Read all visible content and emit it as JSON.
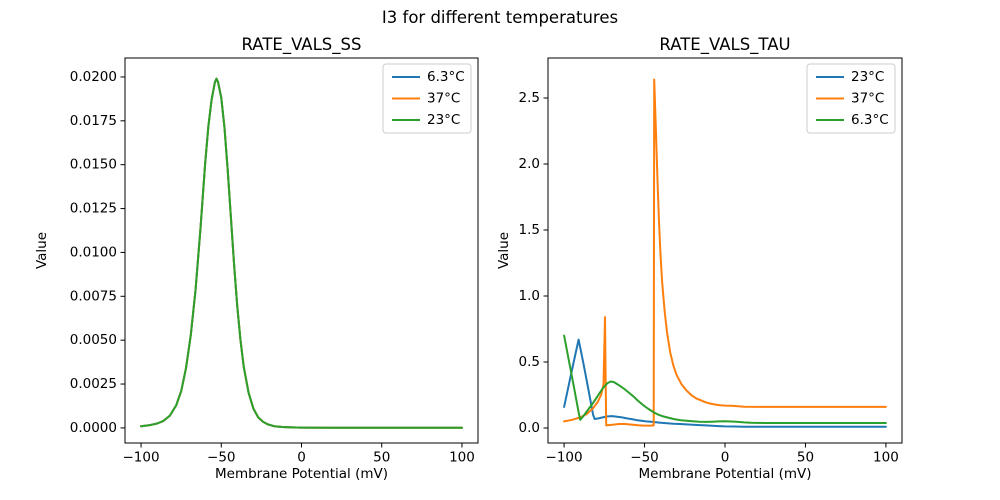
{
  "figure": {
    "title": "I3 for different temperatures",
    "background": "#ffffff"
  },
  "colors": {
    "blue": "#1f77b4",
    "orange": "#ff7f0e",
    "green": "#2ca02c",
    "axis": "#000000",
    "legend_border": "#cccccc"
  },
  "chart_data": [
    {
      "type": "line",
      "title": "RATE_VALS_SS",
      "xlabel": "Membrane Potential (mV)",
      "ylabel": "Value",
      "grid": false,
      "legend_loc": "upper right",
      "xlim": [
        -110,
        110
      ],
      "ylim": [
        -0.00086,
        0.02108
      ],
      "xticks": [
        {
          "v": -100,
          "label": "−100"
        },
        {
          "v": -50,
          "label": "−50"
        },
        {
          "v": 0,
          "label": "0"
        },
        {
          "v": 50,
          "label": "50"
        },
        {
          "v": 100,
          "label": "100"
        }
      ],
      "yticks": [
        {
          "v": 0.0,
          "label": "0.0000"
        },
        {
          "v": 0.0025,
          "label": "0.0025"
        },
        {
          "v": 0.005,
          "label": "0.0050"
        },
        {
          "v": 0.0075,
          "label": "0.0075"
        },
        {
          "v": 0.01,
          "label": "0.0100"
        },
        {
          "v": 0.0125,
          "label": "0.0125"
        },
        {
          "v": 0.015,
          "label": "0.0150"
        },
        {
          "v": 0.0175,
          "label": "0.0175"
        },
        {
          "v": 0.02,
          "label": "0.0200"
        }
      ],
      "series": [
        {
          "name": "6.3°C",
          "color": "#1f77b4",
          "points": [
            [
              -100,
              0.0001
            ],
            [
              -95,
              0.00015
            ],
            [
              -90,
              0.00025
            ],
            [
              -86,
              0.0004
            ],
            [
              -82,
              0.0007
            ],
            [
              -78,
              0.0013
            ],
            [
              -75,
              0.0021
            ],
            [
              -72,
              0.0034
            ],
            [
              -69,
              0.0053
            ],
            [
              -66,
              0.0079
            ],
            [
              -63,
              0.0113
            ],
            [
              -60,
              0.0151
            ],
            [
              -58,
              0.0172
            ],
            [
              -56,
              0.0187
            ],
            [
              -54,
              0.0197
            ],
            [
              -53,
              0.0199
            ],
            [
              -52,
              0.0197
            ],
            [
              -50,
              0.0188
            ],
            [
              -48,
              0.0171
            ],
            [
              -46,
              0.0147
            ],
            [
              -44,
              0.012
            ],
            [
              -42,
              0.0093
            ],
            [
              -40,
              0.0069
            ],
            [
              -38,
              0.005
            ],
            [
              -36,
              0.0035
            ],
            [
              -33,
              0.002
            ],
            [
              -30,
              0.0011
            ],
            [
              -27,
              0.0006
            ],
            [
              -24,
              0.00035
            ],
            [
              -21,
              0.0002
            ],
            [
              -17,
              0.0001
            ],
            [
              -12,
              5e-05
            ],
            [
              -6,
              3e-05
            ],
            [
              0,
              2e-05
            ],
            [
              20,
              1e-05
            ],
            [
              50,
              1e-05
            ],
            [
              100,
              1e-05
            ]
          ]
        },
        {
          "name": "37°C",
          "color": "#ff7f0e",
          "points": [
            [
              -100,
              0.0001
            ],
            [
              -95,
              0.00015
            ],
            [
              -90,
              0.00025
            ],
            [
              -86,
              0.0004
            ],
            [
              -82,
              0.0007
            ],
            [
              -78,
              0.0013
            ],
            [
              -75,
              0.0021
            ],
            [
              -72,
              0.0034
            ],
            [
              -69,
              0.0053
            ],
            [
              -66,
              0.0079
            ],
            [
              -63,
              0.0113
            ],
            [
              -60,
              0.0151
            ],
            [
              -58,
              0.0172
            ],
            [
              -56,
              0.0187
            ],
            [
              -54,
              0.0197
            ],
            [
              -53,
              0.0199
            ],
            [
              -52,
              0.0197
            ],
            [
              -50,
              0.0188
            ],
            [
              -48,
              0.0171
            ],
            [
              -46,
              0.0147
            ],
            [
              -44,
              0.012
            ],
            [
              -42,
              0.0093
            ],
            [
              -40,
              0.0069
            ],
            [
              -38,
              0.005
            ],
            [
              -36,
              0.0035
            ],
            [
              -33,
              0.002
            ],
            [
              -30,
              0.0011
            ],
            [
              -27,
              0.0006
            ],
            [
              -24,
              0.00035
            ],
            [
              -21,
              0.0002
            ],
            [
              -17,
              0.0001
            ],
            [
              -12,
              5e-05
            ],
            [
              -6,
              3e-05
            ],
            [
              0,
              2e-05
            ],
            [
              20,
              1e-05
            ],
            [
              50,
              1e-05
            ],
            [
              100,
              1e-05
            ]
          ]
        },
        {
          "name": "23°C",
          "color": "#2ca02c",
          "points": [
            [
              -100,
              0.0001
            ],
            [
              -95,
              0.00015
            ],
            [
              -90,
              0.00025
            ],
            [
              -86,
              0.0004
            ],
            [
              -82,
              0.0007
            ],
            [
              -78,
              0.0013
            ],
            [
              -75,
              0.0021
            ],
            [
              -72,
              0.0034
            ],
            [
              -69,
              0.0053
            ],
            [
              -66,
              0.0079
            ],
            [
              -63,
              0.0113
            ],
            [
              -60,
              0.0151
            ],
            [
              -58,
              0.0172
            ],
            [
              -56,
              0.0187
            ],
            [
              -54,
              0.0197
            ],
            [
              -53,
              0.0199
            ],
            [
              -52,
              0.0197
            ],
            [
              -50,
              0.0188
            ],
            [
              -48,
              0.0171
            ],
            [
              -46,
              0.0147
            ],
            [
              -44,
              0.012
            ],
            [
              -42,
              0.0093
            ],
            [
              -40,
              0.0069
            ],
            [
              -38,
              0.005
            ],
            [
              -36,
              0.0035
            ],
            [
              -33,
              0.002
            ],
            [
              -30,
              0.0011
            ],
            [
              -27,
              0.0006
            ],
            [
              -24,
              0.00035
            ],
            [
              -21,
              0.0002
            ],
            [
              -17,
              0.0001
            ],
            [
              -12,
              5e-05
            ],
            [
              -6,
              3e-05
            ],
            [
              0,
              2e-05
            ],
            [
              20,
              1e-05
            ],
            [
              50,
              1e-05
            ],
            [
              100,
              1e-05
            ]
          ]
        }
      ]
    },
    {
      "type": "line",
      "title": "RATE_VALS_TAU",
      "xlabel": "Membrane Potential (mV)",
      "ylabel": "Value",
      "grid": false,
      "legend_loc": "upper right",
      "xlim": [
        -110,
        110
      ],
      "ylim": [
        -0.1137,
        2.803
      ],
      "xticks": [
        {
          "v": -100,
          "label": "−100"
        },
        {
          "v": -50,
          "label": "−50"
        },
        {
          "v": 0,
          "label": "0"
        },
        {
          "v": 50,
          "label": "50"
        },
        {
          "v": 100,
          "label": "100"
        }
      ],
      "yticks": [
        {
          "v": 0.0,
          "label": "0.0"
        },
        {
          "v": 0.5,
          "label": "0.5"
        },
        {
          "v": 1.0,
          "label": "1.0"
        },
        {
          "v": 1.5,
          "label": "1.5"
        },
        {
          "v": 2.0,
          "label": "2.0"
        },
        {
          "v": 2.5,
          "label": "2.5"
        }
      ],
      "series": [
        {
          "name": "23°C",
          "color": "#1f77b4",
          "points": [
            [
              -100,
              0.16
            ],
            [
              -97,
              0.33
            ],
            [
              -94,
              0.5
            ],
            [
              -91,
              0.67
            ],
            [
              -88,
              0.49
            ],
            [
              -85,
              0.3
            ],
            [
              -82,
              0.1
            ],
            [
              -81,
              0.068
            ],
            [
              -79,
              0.072
            ],
            [
              -76,
              0.08
            ],
            [
              -73,
              0.088
            ],
            [
              -70,
              0.09
            ],
            [
              -67,
              0.085
            ],
            [
              -64,
              0.08
            ],
            [
              -61,
              0.073
            ],
            [
              -58,
              0.067
            ],
            [
              -55,
              0.06
            ],
            [
              -52,
              0.055
            ],
            [
              -49,
              0.05
            ],
            [
              -46,
              0.047
            ],
            [
              -43,
              0.043
            ],
            [
              -40,
              0.04
            ],
            [
              -36,
              0.036
            ],
            [
              -32,
              0.032
            ],
            [
              -28,
              0.03
            ],
            [
              -24,
              0.027
            ],
            [
              -20,
              0.025
            ],
            [
              -16,
              0.022
            ],
            [
              -12,
              0.02
            ],
            [
              -8,
              0.017
            ],
            [
              -4,
              0.014
            ],
            [
              0,
              0.012
            ],
            [
              6,
              0.011
            ],
            [
              12,
              0.01
            ],
            [
              25,
              0.01
            ],
            [
              50,
              0.01
            ],
            [
              100,
              0.01
            ]
          ]
        },
        {
          "name": "37°C",
          "color": "#ff7f0e",
          "points": [
            [
              -100,
              0.05
            ],
            [
              -95,
              0.062
            ],
            [
              -90,
              0.08
            ],
            [
              -86,
              0.105
            ],
            [
              -82,
              0.15
            ],
            [
              -79,
              0.2
            ],
            [
              -77,
              0.25
            ],
            [
              -75.5,
              0.33
            ],
            [
              -74.6,
              0.84
            ],
            [
              -74.2,
              0.4
            ],
            [
              -73.8,
              0.02
            ],
            [
              -70,
              0.024
            ],
            [
              -66,
              0.03
            ],
            [
              -62,
              0.03
            ],
            [
              -58,
              0.026
            ],
            [
              -54,
              0.021
            ],
            [
              -50,
              0.018
            ],
            [
              -46,
              0.018
            ],
            [
              -44.3,
              0.02
            ],
            [
              -44,
              2.64
            ],
            [
              -43,
              2.28
            ],
            [
              -42,
              1.9
            ],
            [
              -41,
              1.56
            ],
            [
              -40,
              1.3
            ],
            [
              -39,
              1.1
            ],
            [
              -37.5,
              0.88
            ],
            [
              -36,
              0.72
            ],
            [
              -34,
              0.57
            ],
            [
              -32,
              0.47
            ],
            [
              -30,
              0.4
            ],
            [
              -27,
              0.33
            ],
            [
              -24,
              0.285
            ],
            [
              -21,
              0.25
            ],
            [
              -18,
              0.225
            ],
            [
              -15,
              0.21
            ],
            [
              -12,
              0.195
            ],
            [
              -9,
              0.185
            ],
            [
              -6,
              0.177
            ],
            [
              -3,
              0.172
            ],
            [
              0,
              0.17
            ],
            [
              4,
              0.168
            ],
            [
              8,
              0.165
            ],
            [
              12,
              0.161
            ],
            [
              30,
              0.16
            ],
            [
              60,
              0.16
            ],
            [
              100,
              0.16
            ]
          ]
        },
        {
          "name": "6.3°C",
          "color": "#2ca02c",
          "points": [
            [
              -100,
              0.7
            ],
            [
              -97,
              0.51
            ],
            [
              -94,
              0.32
            ],
            [
              -91,
              0.12
            ],
            [
              -90,
              0.062
            ],
            [
              -88,
              0.09
            ],
            [
              -85,
              0.14
            ],
            [
              -82,
              0.19
            ],
            [
              -79,
              0.245
            ],
            [
              -76,
              0.3
            ],
            [
              -73,
              0.34
            ],
            [
              -71,
              0.352
            ],
            [
              -69,
              0.348
            ],
            [
              -66,
              0.325
            ],
            [
              -63,
              0.3
            ],
            [
              -60,
              0.27
            ],
            [
              -57,
              0.24
            ],
            [
              -54,
              0.205
            ],
            [
              -51,
              0.175
            ],
            [
              -48,
              0.148
            ],
            [
              -45,
              0.124
            ],
            [
              -42,
              0.104
            ],
            [
              -39,
              0.09
            ],
            [
              -36,
              0.08
            ],
            [
              -32,
              0.068
            ],
            [
              -28,
              0.06
            ],
            [
              -24,
              0.055
            ],
            [
              -20,
              0.051
            ],
            [
              -16,
              0.047
            ],
            [
              -12,
              0.046
            ],
            [
              -8,
              0.048
            ],
            [
              -4,
              0.05
            ],
            [
              0,
              0.051
            ],
            [
              4,
              0.049
            ],
            [
              8,
              0.046
            ],
            [
              12,
              0.042
            ],
            [
              16,
              0.04
            ],
            [
              25,
              0.038
            ],
            [
              50,
              0.038
            ],
            [
              100,
              0.038
            ]
          ]
        }
      ]
    }
  ]
}
